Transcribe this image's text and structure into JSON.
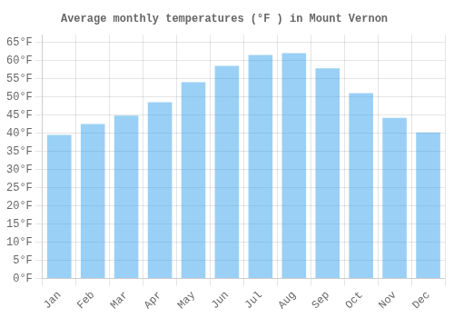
{
  "chart_data": {
    "type": "bar",
    "title": "Average monthly temperatures (°F ) in Mount Vernon",
    "categories": [
      "Jan",
      "Feb",
      "Mar",
      "Apr",
      "May",
      "Jun",
      "Jul",
      "Aug",
      "Sep",
      "Oct",
      "Nov",
      "Dec"
    ],
    "values": [
      39.5,
      42.5,
      44.8,
      48.5,
      54.0,
      58.5,
      61.5,
      62.0,
      57.8,
      51.0,
      44.2,
      40.2
    ],
    "ylim": [
      0,
      67
    ],
    "yticks": [
      {
        "value": 0,
        "label": "0°F"
      },
      {
        "value": 5,
        "label": "5°F"
      },
      {
        "value": 10,
        "label": "10°F"
      },
      {
        "value": 15,
        "label": "15°F"
      },
      {
        "value": 20,
        "label": "20°F"
      },
      {
        "value": 25,
        "label": "25°F"
      },
      {
        "value": 30,
        "label": "30°F"
      },
      {
        "value": 35,
        "label": "35°F"
      },
      {
        "value": 40,
        "label": "40°F"
      },
      {
        "value": 45,
        "label": "45°F"
      },
      {
        "value": 50,
        "label": "50°F"
      },
      {
        "value": 55,
        "label": "55°F"
      },
      {
        "value": 60,
        "label": "60°F"
      },
      {
        "value": 65,
        "label": "65°F"
      }
    ],
    "grid": true
  }
}
